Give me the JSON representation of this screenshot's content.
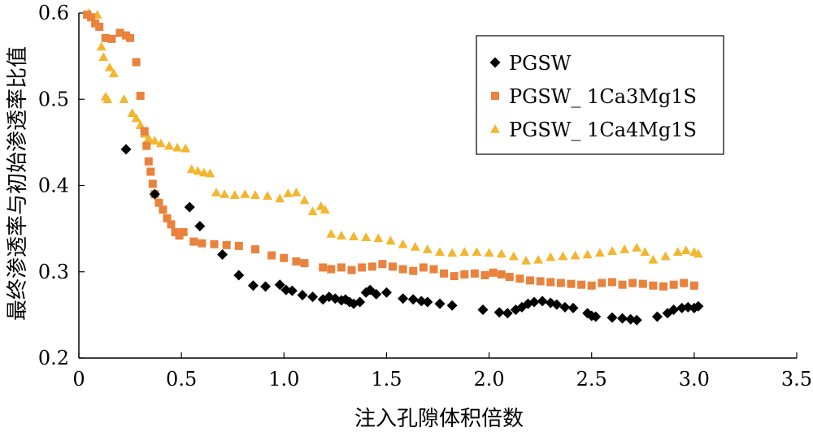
{
  "chart_data": {
    "type": "scatter",
    "xlabel": "注入孔隙体积倍数",
    "ylabel": "最终渗透率与初始渗透率比值",
    "xlim": [
      0,
      3.5
    ],
    "ylim": [
      0.2,
      0.6
    ],
    "x_ticks": [
      "0",
      "0.5",
      "1.0",
      "1.5",
      "2.0",
      "2.5",
      "3.0",
      "3.5"
    ],
    "y_ticks": [
      "0.2",
      "0.3",
      "0.4",
      "0.5",
      "0.6"
    ],
    "grid": false,
    "legend_position": "top-right",
    "series": [
      {
        "name": "PGSW",
        "marker": "diamond",
        "color": "#000000",
        "points": [
          [
            0.23,
            0.442
          ],
          [
            0.37,
            0.39
          ],
          [
            0.54,
            0.375
          ],
          [
            0.59,
            0.353
          ],
          [
            0.7,
            0.32
          ],
          [
            0.78,
            0.296
          ],
          [
            0.85,
            0.284
          ],
          [
            0.91,
            0.283
          ],
          [
            0.98,
            0.285
          ],
          [
            1.01,
            0.279
          ],
          [
            1.04,
            0.278
          ],
          [
            1.09,
            0.273
          ],
          [
            1.14,
            0.271
          ],
          [
            1.19,
            0.268
          ],
          [
            1.22,
            0.271
          ],
          [
            1.25,
            0.269
          ],
          [
            1.28,
            0.267
          ],
          [
            1.3,
            0.268
          ],
          [
            1.32,
            0.265
          ],
          [
            1.34,
            0.263
          ],
          [
            1.37,
            0.265
          ],
          [
            1.4,
            0.276
          ],
          [
            1.42,
            0.279
          ],
          [
            1.45,
            0.274
          ],
          [
            1.5,
            0.276
          ],
          [
            1.58,
            0.269
          ],
          [
            1.63,
            0.268
          ],
          [
            1.67,
            0.266
          ],
          [
            1.7,
            0.265
          ],
          [
            1.76,
            0.263
          ],
          [
            1.82,
            0.261
          ],
          [
            1.97,
            0.256
          ],
          [
            2.05,
            0.253
          ],
          [
            2.09,
            0.252
          ],
          [
            2.13,
            0.256
          ],
          [
            2.16,
            0.259
          ],
          [
            2.19,
            0.263
          ],
          [
            2.22,
            0.265
          ],
          [
            2.26,
            0.266
          ],
          [
            2.3,
            0.264
          ],
          [
            2.33,
            0.262
          ],
          [
            2.37,
            0.259
          ],
          [
            2.41,
            0.258
          ],
          [
            2.48,
            0.252
          ],
          [
            2.5,
            0.249
          ],
          [
            2.52,
            0.248
          ],
          [
            2.6,
            0.247
          ],
          [
            2.65,
            0.246
          ],
          [
            2.69,
            0.245
          ],
          [
            2.72,
            0.244
          ],
          [
            2.82,
            0.248
          ],
          [
            2.87,
            0.252
          ],
          [
            2.9,
            0.256
          ],
          [
            2.94,
            0.258
          ],
          [
            2.97,
            0.259
          ],
          [
            3.0,
            0.258
          ],
          [
            3.02,
            0.26
          ]
        ]
      },
      {
        "name": "PGSW_ 1Ca3Mg1S",
        "marker": "square",
        "color": "#e8823d",
        "points": [
          [
            0.04,
            0.598
          ],
          [
            0.06,
            0.595
          ],
          [
            0.08,
            0.588
          ],
          [
            0.1,
            0.584
          ],
          [
            0.13,
            0.571
          ],
          [
            0.16,
            0.57
          ],
          [
            0.2,
            0.577
          ],
          [
            0.23,
            0.574
          ],
          [
            0.25,
            0.571
          ],
          [
            0.28,
            0.543
          ],
          [
            0.3,
            0.504
          ],
          [
            0.32,
            0.463
          ],
          [
            0.33,
            0.446
          ],
          [
            0.34,
            0.428
          ],
          [
            0.35,
            0.416
          ],
          [
            0.36,
            0.402
          ],
          [
            0.37,
            0.39
          ],
          [
            0.39,
            0.38
          ],
          [
            0.41,
            0.372
          ],
          [
            0.43,
            0.362
          ],
          [
            0.45,
            0.355
          ],
          [
            0.47,
            0.346
          ],
          [
            0.49,
            0.342
          ],
          [
            0.51,
            0.346
          ],
          [
            0.56,
            0.335
          ],
          [
            0.6,
            0.333
          ],
          [
            0.66,
            0.332
          ],
          [
            0.72,
            0.331
          ],
          [
            0.78,
            0.33
          ],
          [
            0.86,
            0.326
          ],
          [
            0.94,
            0.319
          ],
          [
            1.0,
            0.316
          ],
          [
            1.06,
            0.312
          ],
          [
            1.1,
            0.31
          ],
          [
            1.19,
            0.305
          ],
          [
            1.23,
            0.303
          ],
          [
            1.28,
            0.305
          ],
          [
            1.33,
            0.302
          ],
          [
            1.38,
            0.305
          ],
          [
            1.43,
            0.306
          ],
          [
            1.48,
            0.309
          ],
          [
            1.53,
            0.306
          ],
          [
            1.58,
            0.303
          ],
          [
            1.63,
            0.301
          ],
          [
            1.68,
            0.305
          ],
          [
            1.73,
            0.303
          ],
          [
            1.78,
            0.298
          ],
          [
            1.83,
            0.295
          ],
          [
            1.88,
            0.297
          ],
          [
            1.93,
            0.298
          ],
          [
            1.98,
            0.296
          ],
          [
            2.02,
            0.299
          ],
          [
            2.06,
            0.297
          ],
          [
            2.1,
            0.294
          ],
          [
            2.15,
            0.292
          ],
          [
            2.2,
            0.29
          ],
          [
            2.25,
            0.289
          ],
          [
            2.3,
            0.288
          ],
          [
            2.35,
            0.287
          ],
          [
            2.4,
            0.286
          ],
          [
            2.45,
            0.285
          ],
          [
            2.5,
            0.284
          ],
          [
            2.55,
            0.287
          ],
          [
            2.6,
            0.288
          ],
          [
            2.65,
            0.285
          ],
          [
            2.7,
            0.287
          ],
          [
            2.75,
            0.286
          ],
          [
            2.8,
            0.284
          ],
          [
            2.85,
            0.283
          ],
          [
            2.9,
            0.285
          ],
          [
            2.95,
            0.287
          ],
          [
            3.0,
            0.284
          ]
        ]
      },
      {
        "name": "PGSW_ 1Ca4Mg1S",
        "marker": "triangle",
        "color": "#f2b630",
        "points": [
          [
            0.05,
            0.6
          ],
          [
            0.09,
            0.598
          ],
          [
            0.11,
            0.561
          ],
          [
            0.12,
            0.549
          ],
          [
            0.15,
            0.537
          ],
          [
            0.17,
            0.53
          ],
          [
            0.13,
            0.503
          ],
          [
            0.14,
            0.5
          ],
          [
            0.22,
            0.5
          ],
          [
            0.26,
            0.484
          ],
          [
            0.28,
            0.478
          ],
          [
            0.3,
            0.47
          ],
          [
            0.32,
            0.46
          ],
          [
            0.34,
            0.455
          ],
          [
            0.37,
            0.452
          ],
          [
            0.4,
            0.449
          ],
          [
            0.44,
            0.446
          ],
          [
            0.48,
            0.444
          ],
          [
            0.52,
            0.443
          ],
          [
            0.55,
            0.419
          ],
          [
            0.58,
            0.417
          ],
          [
            0.61,
            0.415
          ],
          [
            0.64,
            0.414
          ],
          [
            0.67,
            0.392
          ],
          [
            0.71,
            0.39
          ],
          [
            0.76,
            0.389
          ],
          [
            0.81,
            0.39
          ],
          [
            0.86,
            0.389
          ],
          [
            0.92,
            0.388
          ],
          [
            0.98,
            0.385
          ],
          [
            1.02,
            0.391
          ],
          [
            1.06,
            0.392
          ],
          [
            1.1,
            0.383
          ],
          [
            1.14,
            0.37
          ],
          [
            1.18,
            0.376
          ],
          [
            1.2,
            0.372
          ],
          [
            1.23,
            0.344
          ],
          [
            1.28,
            0.342
          ],
          [
            1.34,
            0.341
          ],
          [
            1.4,
            0.34
          ],
          [
            1.46,
            0.339
          ],
          [
            1.52,
            0.336
          ],
          [
            1.58,
            0.332
          ],
          [
            1.64,
            0.329
          ],
          [
            1.7,
            0.326
          ],
          [
            1.76,
            0.323
          ],
          [
            1.82,
            0.322
          ],
          [
            1.88,
            0.323
          ],
          [
            1.94,
            0.323
          ],
          [
            2.0,
            0.322
          ],
          [
            2.06,
            0.321
          ],
          [
            2.12,
            0.318
          ],
          [
            2.18,
            0.313
          ],
          [
            2.24,
            0.314
          ],
          [
            2.3,
            0.317
          ],
          [
            2.36,
            0.318
          ],
          [
            2.42,
            0.319
          ],
          [
            2.48,
            0.32
          ],
          [
            2.54,
            0.322
          ],
          [
            2.6,
            0.324
          ],
          [
            2.66,
            0.326
          ],
          [
            2.72,
            0.328
          ],
          [
            2.76,
            0.323
          ],
          [
            2.8,
            0.314
          ],
          [
            2.86,
            0.318
          ],
          [
            2.92,
            0.323
          ],
          [
            2.96,
            0.325
          ],
          [
            3.0,
            0.323
          ],
          [
            3.02,
            0.321
          ]
        ]
      }
    ]
  }
}
